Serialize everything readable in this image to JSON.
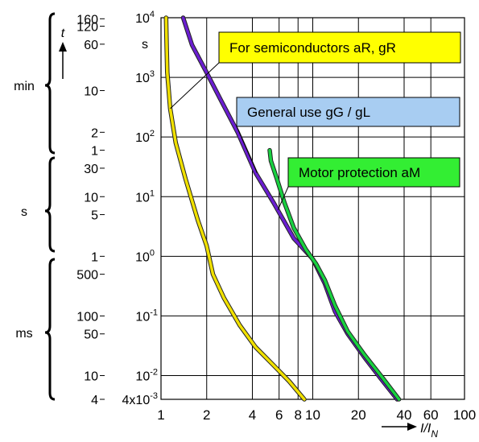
{
  "chart_data": {
    "type": "line",
    "title": "",
    "x_scale": "log",
    "y_scale": "log",
    "xlim": [
      1,
      100
    ],
    "ylim": [
      0.004,
      10000
    ],
    "xlabel": {
      "main": "I/I",
      "sub": "N"
    },
    "ylabel_primary": "t",
    "ylabel_secondary_unit": "s",
    "grid": true,
    "x_ticks": [
      1,
      2,
      4,
      6,
      8,
      10,
      20,
      40,
      60,
      100
    ],
    "x_tick_labels": [
      "1",
      "2",
      "4",
      "6",
      "8",
      "10",
      "20",
      "40",
      "60",
      "100"
    ],
    "y_ticks": [
      10000,
      1000,
      100,
      10,
      1,
      0.1,
      0.01
    ],
    "y_tick_labels": [
      {
        "mantissa": "10",
        "exp": "4"
      },
      {
        "mantissa": "10",
        "exp": "3"
      },
      {
        "mantissa": "10",
        "exp": "2"
      },
      {
        "mantissa": "10",
        "exp": "1"
      },
      {
        "mantissa": "10",
        "exp": "0"
      },
      {
        "mantissa": "10",
        "exp": "-1"
      },
      {
        "mantissa": "10",
        "exp": "-2"
      }
    ],
    "y_bottom_label": {
      "mantissa": "4x10",
      "exp": "-3"
    },
    "secondary_axis": {
      "groups": [
        {
          "unit": "min",
          "ticks": [
            {
              "label": "160",
              "seconds": 9600
            },
            {
              "label": "120",
              "seconds": 7200
            },
            {
              "label": "60",
              "seconds": 3600
            },
            {
              "label": "10",
              "seconds": 600
            },
            {
              "label": "2",
              "seconds": 120
            }
          ]
        },
        {
          "unit": "s",
          "ticks": [
            {
              "label": "1",
              "seconds": 60
            },
            {
              "label": "30",
              "seconds": 30
            },
            {
              "label": "10",
              "seconds": 10
            },
            {
              "label": "5",
              "seconds": 5
            },
            {
              "label": "1",
              "seconds": 1
            }
          ]
        },
        {
          "unit": "ms",
          "ticks": [
            {
              "label": "500",
              "seconds": 0.5
            },
            {
              "label": "100",
              "seconds": 0.1
            },
            {
              "label": "50",
              "seconds": 0.05
            },
            {
              "label": "10",
              "seconds": 0.01
            },
            {
              "label": "4",
              "seconds": 0.004
            }
          ]
        }
      ]
    },
    "series": [
      {
        "name": "For semiconductors aR, gR",
        "color": "#f0e000",
        "box_color": "#ffff00",
        "points": [
          [
            1.08,
            10000
          ],
          [
            1.09,
            3000
          ],
          [
            1.1,
            1200
          ],
          [
            1.15,
            300
          ],
          [
            1.25,
            80
          ],
          [
            1.45,
            20
          ],
          [
            1.75,
            4
          ],
          [
            2.0,
            1.5
          ],
          [
            2.2,
            0.5
          ],
          [
            2.6,
            0.2
          ],
          [
            3.3,
            0.07
          ],
          [
            4.2,
            0.03
          ],
          [
            5.5,
            0.015
          ],
          [
            7.0,
            0.008
          ],
          [
            8.8,
            0.004
          ]
        ]
      },
      {
        "name": "General use gG / gL",
        "color": "#6a1ed0",
        "box_color": "#a8cdf2",
        "points": [
          [
            1.4,
            10000
          ],
          [
            1.6,
            3500
          ],
          [
            2.0,
            1200
          ],
          [
            2.5,
            400
          ],
          [
            3.2,
            120
          ],
          [
            4.2,
            25
          ],
          [
            5.5,
            8
          ],
          [
            7.5,
            2.0
          ],
          [
            10,
            0.9
          ],
          [
            12,
            0.35
          ],
          [
            14,
            0.12
          ],
          [
            17,
            0.05
          ],
          [
            22,
            0.02
          ],
          [
            28,
            0.009
          ],
          [
            36,
            0.004
          ]
        ]
      },
      {
        "name": "Motor protection aM",
        "color": "#18d040",
        "box_color": "#33ee33",
        "points": [
          [
            5.2,
            60
          ],
          [
            5.3,
            40
          ],
          [
            5.8,
            20
          ],
          [
            6.5,
            8
          ],
          [
            7.5,
            3.0
          ],
          [
            9.0,
            1.3
          ],
          [
            10.5,
            0.75
          ],
          [
            12,
            0.4
          ],
          [
            14,
            0.15
          ],
          [
            17,
            0.055
          ],
          [
            22,
            0.022
          ],
          [
            29,
            0.009
          ],
          [
            37,
            0.004
          ]
        ]
      }
    ],
    "annotations": [
      {
        "text": "For semiconductors aR, gR",
        "series": 0
      },
      {
        "text": "General use gG / gL",
        "series": 1
      },
      {
        "text": "Motor protection aM",
        "series": 2
      }
    ]
  }
}
